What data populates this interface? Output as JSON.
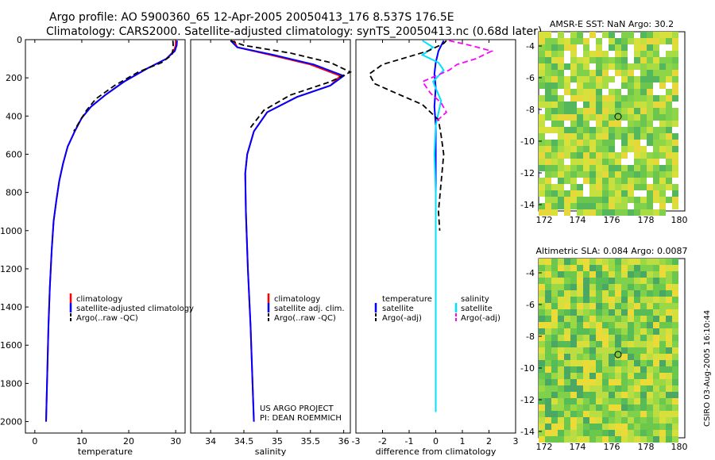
{
  "header": {
    "line1": "Argo profile: AO 5900360_65 12-Apr-2005 20050413_176 8.537S 176.5E",
    "line2": "Climatology: CARS2000. Satellite-adjusted climatology: synTS_20050413.nc (0.68d later)"
  },
  "colors": {
    "climatology": "#ff0000",
    "satellite": "#0000ff",
    "argo": "#000000",
    "sal_satellite": "#00e0ff",
    "sal_argo": "#ff00ff"
  },
  "chart_data": [
    {
      "type": "line",
      "title": "",
      "xlabel": "temperature",
      "ylabel": "",
      "xlim": [
        -2,
        32
      ],
      "ylim": [
        2060,
        0
      ],
      "xticks": [
        0,
        10,
        20,
        30
      ],
      "yticks": [
        0,
        200,
        400,
        600,
        800,
        1000,
        1200,
        1400,
        1600,
        1800,
        2000
      ],
      "legend": [
        "climatology",
        "satellite-adjusted climatology",
        "Argo(..raw -QC)"
      ],
      "series": [
        {
          "name": "climatology",
          "style": "solid",
          "color": "#ff0000",
          "x": [
            30,
            30,
            29.6,
            28,
            24,
            19,
            15,
            12,
            10,
            8.5,
            7,
            6,
            5.2,
            4.6,
            4,
            3.6,
            3.2,
            2.9,
            2.7,
            2.5,
            2.4
          ],
          "y": [
            5,
            30,
            60,
            100,
            150,
            220,
            290,
            350,
            410,
            480,
            560,
            650,
            740,
            840,
            950,
            1100,
            1300,
            1500,
            1700,
            1900,
            2000
          ]
        },
        {
          "name": "satellite",
          "style": "solid",
          "color": "#0000ff",
          "x": [
            30.3,
            30.2,
            29.8,
            28,
            24,
            19,
            15,
            12,
            10,
            8.5,
            7,
            6,
            5.2,
            4.6,
            4,
            3.6,
            3.2,
            2.9,
            2.7,
            2.5,
            2.4
          ],
          "y": [
            5,
            30,
            60,
            100,
            150,
            220,
            290,
            350,
            410,
            480,
            560,
            650,
            740,
            840,
            950,
            1100,
            1300,
            1500,
            1700,
            1900,
            2000
          ]
        },
        {
          "name": "Argo",
          "style": "dash",
          "color": "#000000",
          "x": [
            29.4,
            29.5,
            29.2,
            27,
            22,
            17,
            13,
            11,
            9.5,
            8.3
          ],
          "y": [
            5,
            40,
            80,
            120,
            170,
            240,
            310,
            370,
            430,
            480
          ]
        }
      ]
    },
    {
      "type": "line",
      "title": "",
      "xlabel": "salinity",
      "ylabel": "",
      "xlim": [
        33.7,
        36.1
      ],
      "ylim": [
        2060,
        0
      ],
      "xticks": [
        34,
        34.5,
        35,
        35.5,
        36
      ],
      "yticks": [],
      "legend": [
        "climatology",
        "satellite adj. clim.",
        "Argo(..raw -QC)"
      ],
      "series": [
        {
          "name": "climatology",
          "style": "solid",
          "color": "#ff0000",
          "x": [
            34.35,
            34.4,
            34.9,
            35.5,
            35.95,
            35.8,
            35.3,
            34.85,
            34.65,
            34.55,
            34.52,
            34.53,
            34.56,
            34.6,
            34.63,
            34.65
          ],
          "y": [
            5,
            40,
            80,
            130,
            190,
            240,
            300,
            380,
            480,
            600,
            700,
            900,
            1200,
            1500,
            1800,
            2000
          ]
        },
        {
          "name": "satellite",
          "style": "solid",
          "color": "#0000ff",
          "x": [
            34.3,
            34.4,
            34.95,
            35.55,
            36.0,
            35.8,
            35.3,
            34.85,
            34.65,
            34.55,
            34.52,
            34.53,
            34.56,
            34.6,
            34.63,
            34.65
          ],
          "y": [
            5,
            40,
            80,
            130,
            190,
            240,
            300,
            380,
            480,
            600,
            700,
            900,
            1200,
            1500,
            1800,
            2000
          ]
        },
        {
          "name": "Argo",
          "style": "dash",
          "color": "#000000",
          "x": [
            34.3,
            34.5,
            35.2,
            35.8,
            36.1,
            35.8,
            35.2,
            34.8,
            34.6
          ],
          "y": [
            5,
            30,
            70,
            120,
            170,
            220,
            290,
            370,
            460
          ]
        }
      ]
    },
    {
      "type": "line",
      "title": "",
      "xlabel": "difference from climatology",
      "ylabel": "",
      "xlim": [
        -3,
        3
      ],
      "ylim": [
        2060,
        0
      ],
      "xticks": [
        -3,
        -2,
        -1,
        0,
        1,
        2,
        3
      ],
      "yticks": [],
      "legend_left": [
        "temperature",
        "satellite",
        "Argo(-adj)"
      ],
      "legend_right": [
        "salinity",
        "satellite",
        "Argo(-adj)"
      ],
      "series": [
        {
          "name": "temperature satellite",
          "style": "solid",
          "color": "#0000ff",
          "x": [
            0.3,
            0.1,
            0,
            -0.05,
            0,
            -0.05,
            0,
            0,
            0,
            0,
            0,
            0,
            0
          ],
          "y": [
            5,
            60,
            120,
            180,
            250,
            350,
            450,
            600,
            800,
            1000,
            1400,
            1800,
            1950
          ]
        },
        {
          "name": "salinity satellite",
          "style": "solid",
          "color": "#00e0ff",
          "x": [
            -0.5,
            -0.1,
            -0.5,
            0.1,
            0.3,
            -0.1,
            0.2,
            0,
            -0.05,
            0,
            0,
            0,
            0,
            0,
            0
          ],
          "y": [
            5,
            40,
            80,
            120,
            160,
            220,
            320,
            450,
            600,
            800,
            1000,
            1200,
            1500,
            1800,
            1950
          ]
        },
        {
          "name": "temperature Argo",
          "style": "dash",
          "color": "#000000",
          "x": [
            0.4,
            0.3,
            -0.3,
            -2.0,
            -2.5,
            -2.3,
            -1.5,
            -0.5,
            0.1,
            0.2,
            0.3,
            0.2,
            0.1,
            0.15
          ],
          "y": [
            5,
            20,
            60,
            130,
            180,
            230,
            280,
            340,
            420,
            500,
            600,
            750,
            900,
            1000
          ]
        },
        {
          "name": "salinity Argo",
          "style": "dash",
          "color": "#ff00ff",
          "x": [
            0.5,
            1.3,
            2.1,
            1.5,
            0.8,
            0.5,
            -0.5,
            -0.2,
            0.2,
            0.4,
            0
          ],
          "y": [
            5,
            30,
            60,
            100,
            130,
            160,
            220,
            280,
            330,
            380,
            430
          ]
        }
      ]
    }
  ],
  "maps": [
    {
      "title": "AMSR-E SST: NaN Argo: 30.2",
      "xticks": [
        "172",
        "174",
        "176",
        "178",
        "180"
      ],
      "yticks": [
        "-4",
        "-6",
        "-8",
        "-10",
        "-12",
        "-14"
      ]
    },
    {
      "title": "Altimetric SLA: 0.084 Argo: 0.0087",
      "xticks": [
        "172",
        "174",
        "176",
        "178",
        "180"
      ],
      "yticks": [
        "-4",
        "-6",
        "-8",
        "-10",
        "-12",
        "-14"
      ]
    }
  ],
  "notes": {
    "project": "US ARGO PROJECT",
    "pi": "PI: DEAN ROEMMICH",
    "stamp": "CSIRO 03-Aug-2005 16:10:44"
  }
}
